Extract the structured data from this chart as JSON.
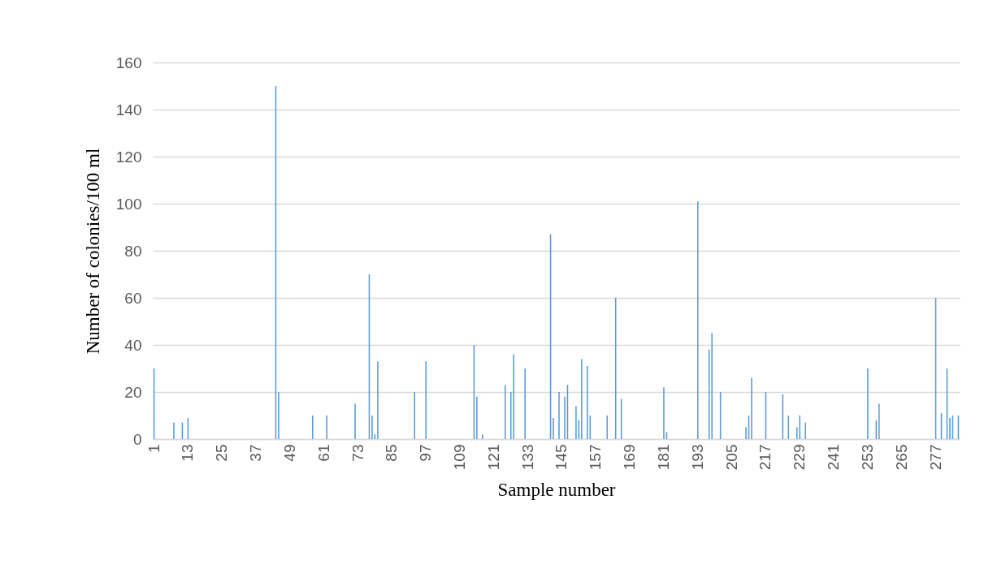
{
  "chart_data": {
    "type": "bar",
    "xlabel": "Sample number",
    "ylabel": "Number of colonies/100 ml",
    "color": "#5b9bd5",
    "ylim": [
      0,
      160
    ],
    "yticks": [
      0,
      20,
      40,
      60,
      80,
      100,
      120,
      140,
      160
    ],
    "grid": "y",
    "categories": [
      "1",
      null,
      null,
      null,
      null,
      null,
      null,
      null,
      null,
      null,
      null,
      null,
      "13",
      null,
      null,
      null,
      null,
      null,
      null,
      null,
      null,
      null,
      null,
      null,
      "25",
      null,
      null,
      null,
      null,
      null,
      null,
      null,
      null,
      null,
      null,
      null,
      "37",
      null,
      null,
      null,
      null,
      null,
      null,
      null,
      null,
      null,
      null,
      null,
      "49",
      null,
      null,
      null,
      null,
      null,
      null,
      null,
      null,
      null,
      null,
      null,
      "61",
      null,
      null,
      null,
      null,
      null,
      null,
      null,
      null,
      null,
      null,
      null,
      "73",
      null,
      null,
      null,
      null,
      null,
      null,
      null,
      null,
      null,
      null,
      null,
      "85",
      null,
      null,
      null,
      null,
      null,
      null,
      null,
      null,
      null,
      null,
      null,
      "97",
      null,
      null,
      null,
      null,
      null,
      null,
      null,
      null,
      null,
      null,
      null,
      "109",
      null,
      null,
      null,
      null,
      null,
      null,
      null,
      null,
      null,
      null,
      null,
      "121",
      null,
      null,
      null,
      null,
      null,
      null,
      null,
      null,
      null,
      null,
      null,
      "133",
      null,
      null,
      null,
      null,
      null,
      null,
      null,
      null,
      null,
      null,
      null,
      "145",
      null,
      null,
      null,
      null,
      null,
      null,
      null,
      null,
      null,
      null,
      null,
      "157",
      null,
      null,
      null,
      null,
      null,
      null,
      null,
      null,
      null,
      null,
      null,
      "169",
      null,
      null,
      null,
      null,
      null,
      null,
      null,
      null,
      null,
      null,
      null,
      "181",
      null,
      null,
      null,
      null,
      null,
      null,
      null,
      null,
      null,
      null,
      null,
      "193",
      null,
      null,
      null,
      null,
      null,
      null,
      null,
      null,
      null,
      null,
      null,
      "205",
      null,
      null,
      null,
      null,
      null,
      null,
      null,
      null,
      null,
      null,
      null,
      "217",
      null,
      null,
      null,
      null,
      null,
      null,
      null,
      null,
      null,
      null,
      null,
      "229",
      null,
      null,
      null,
      null,
      null,
      null,
      null,
      null,
      null,
      null,
      null,
      "241",
      null,
      null,
      null,
      null,
      null,
      null,
      null,
      null,
      null,
      null,
      null,
      "253",
      null,
      null,
      null,
      null,
      null,
      null,
      null,
      null,
      null,
      null,
      null,
      "265",
      null,
      null,
      null,
      null,
      null,
      null,
      null,
      null,
      null,
      null,
      null,
      "277",
      null,
      null,
      null,
      null,
      null,
      null,
      null,
      null
    ],
    "values": [
      30,
      0,
      0,
      0,
      0,
      0,
      0,
      7,
      0,
      0,
      7,
      0,
      9,
      0,
      0,
      0,
      0,
      0,
      0,
      0,
      0,
      0,
      0,
      0,
      0,
      0,
      0,
      0,
      0,
      0,
      0,
      0,
      0,
      0,
      0,
      0,
      0,
      0,
      0,
      0,
      0,
      0,
      0,
      150,
      20,
      0,
      0,
      0,
      0,
      0,
      0,
      0,
      0,
      0,
      0,
      0,
      10,
      0,
      0,
      0,
      0,
      10,
      0,
      0,
      0,
      0,
      0,
      0,
      0,
      0,
      0,
      15,
      0,
      0,
      0,
      0,
      70,
      10,
      2,
      33,
      0,
      0,
      0,
      0,
      0,
      0,
      0,
      0,
      0,
      0,
      0,
      0,
      20,
      0,
      0,
      0,
      33,
      0,
      0,
      0,
      0,
      0,
      0,
      0,
      0,
      0,
      0,
      0,
      0,
      0,
      0,
      0,
      0,
      40,
      18,
      0,
      2,
      0,
      0,
      0,
      0,
      0,
      0,
      0,
      23,
      0,
      20,
      36,
      0,
      0,
      0,
      30,
      0,
      0,
      0,
      0,
      0,
      0,
      0,
      0,
      87,
      9,
      0,
      20,
      0,
      18,
      23,
      0,
      0,
      14,
      8,
      34,
      0,
      31,
      10,
      0,
      0,
      0,
      0,
      0,
      10,
      0,
      0,
      60,
      0,
      17,
      0,
      0,
      0,
      0,
      0,
      0,
      0,
      0,
      0,
      0,
      0,
      0,
      0,
      0,
      22,
      3,
      0,
      0,
      0,
      0,
      0,
      0,
      0,
      0,
      0,
      0,
      101,
      0,
      0,
      0,
      38,
      45,
      0,
      0,
      20,
      0,
      0,
      0,
      0,
      0,
      0,
      0,
      0,
      5,
      10,
      26,
      0,
      0,
      0,
      0,
      20,
      0,
      0,
      0,
      0,
      0,
      19,
      0,
      10,
      0,
      0,
      5,
      10,
      0,
      7,
      0,
      0,
      0,
      0,
      0,
      0,
      0,
      0,
      0,
      0,
      0,
      0,
      0,
      0,
      0,
      0,
      0,
      0,
      0,
      0,
      0,
      30,
      0,
      0,
      8,
      15,
      0,
      0,
      0,
      0,
      0,
      0,
      0,
      0,
      0,
      0,
      0,
      0,
      0,
      0,
      0,
      0,
      0,
      0,
      0,
      60,
      0,
      11,
      0,
      30,
      9,
      10,
      0,
      10
    ]
  }
}
